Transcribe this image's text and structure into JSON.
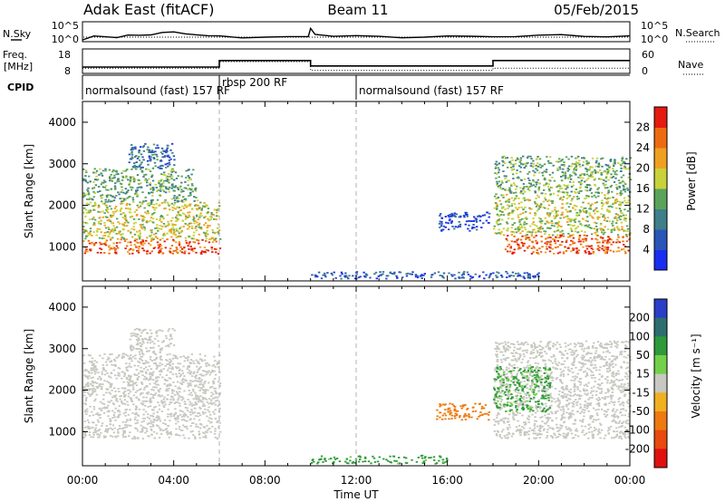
{
  "header": {
    "station": "Adak East (fitACF)",
    "beam": "Beam 11",
    "date": "05/Feb/2015"
  },
  "colors": {
    "line": "#000000",
    "vline": "#b0b0b0"
  },
  "chart_data": [
    {
      "type": "line",
      "panel": "noise",
      "left_label": "N.Sky",
      "right_label": "N.Search",
      "y_ticks_left": [
        "10^5",
        "10^0"
      ],
      "y_ticks_right": [
        "10^5",
        "10^0"
      ],
      "x_range_hours": [
        0,
        24
      ],
      "sky_level": [
        [
          0,
          0.12
        ],
        [
          0.5,
          0.2
        ],
        [
          1,
          0.25
        ],
        [
          1.5,
          0.22
        ],
        [
          2,
          0.28
        ],
        [
          2.5,
          0.3
        ],
        [
          3,
          0.35
        ],
        [
          3.5,
          0.42
        ],
        [
          4,
          0.45
        ],
        [
          4.5,
          0.38
        ],
        [
          5,
          0.3
        ],
        [
          5.5,
          0.26
        ],
        [
          6,
          0.22
        ],
        [
          7,
          0.2
        ],
        [
          8,
          0.22
        ],
        [
          9,
          0.2
        ],
        [
          9.9,
          0.2
        ],
        [
          10,
          0.75
        ],
        [
          10.2,
          0.32
        ],
        [
          11,
          0.25
        ],
        [
          12,
          0.22
        ],
        [
          13,
          0.2
        ],
        [
          14,
          0.22
        ],
        [
          15,
          0.2
        ],
        [
          16,
          0.2
        ],
        [
          17,
          0.22
        ],
        [
          18,
          0.2
        ],
        [
          19,
          0.22
        ],
        [
          20,
          0.25
        ],
        [
          21,
          0.28
        ],
        [
          22,
          0.26
        ],
        [
          23,
          0.24
        ],
        [
          24,
          0.22
        ]
      ]
    },
    {
      "type": "line",
      "panel": "frequency",
      "left_label": "Freq.",
      "left_unit": "[MHz]",
      "right_label": "Nave",
      "y_ticks_left": [
        "18",
        "8"
      ],
      "y_ticks_right": [
        "60",
        "0"
      ],
      "x_range_hours": [
        0,
        24
      ],
      "frequency_mhz": [
        [
          0,
          10.5
        ],
        [
          6,
          10.5
        ],
        [
          6,
          13.5
        ],
        [
          10,
          13.5
        ],
        [
          10,
          11
        ],
        [
          18,
          11
        ],
        [
          18,
          13.5
        ],
        [
          24,
          13.5
        ]
      ],
      "nave": [
        [
          0,
          12
        ],
        [
          6,
          12
        ],
        [
          6,
          30
        ],
        [
          10,
          30
        ],
        [
          10,
          6
        ],
        [
          18,
          6
        ],
        [
          18,
          12
        ],
        [
          24,
          12
        ]
      ]
    },
    {
      "type": "table",
      "panel": "cpid",
      "label": "CPID",
      "programs": [
        {
          "start": 0,
          "end": 6,
          "name": "normalsound (fast) 157 RF"
        },
        {
          "start": 6,
          "end": 12,
          "name": "rbsp 200 RF"
        },
        {
          "start": 12,
          "end": 24,
          "name": "normalsound (fast) 157 RF"
        }
      ]
    },
    {
      "type": "heatmap",
      "panel": "power",
      "ylabel": "Slant Range [km]",
      "ylim": [
        180,
        4500
      ],
      "y_ticks": [
        1000,
        2000,
        3000,
        4000
      ],
      "x_range_hours": [
        0,
        24
      ],
      "colorbar_label": "Power [dB]",
      "colorbar_ticks": [
        4,
        8,
        12,
        16,
        20,
        24,
        28
      ],
      "colorbar_range": [
        0,
        32
      ],
      "colorbar_colors": [
        "#1a2ef0",
        "#2a55b8",
        "#3e7f8a",
        "#5aa35a",
        "#c8d23a",
        "#f0a020",
        "#ee6a10",
        "#e51a10"
      ],
      "regions": [
        {
          "t": [
            0,
            6
          ],
          "r": [
            850,
            1200
          ],
          "level": 27
        },
        {
          "t": [
            0,
            6
          ],
          "r": [
            1200,
            2100
          ],
          "level": 18
        },
        {
          "t": [
            0,
            5
          ],
          "r": [
            2100,
            2900
          ],
          "level": 13
        },
        {
          "t": [
            2,
            4
          ],
          "r": [
            2900,
            3500
          ],
          "level": 8
        },
        {
          "t": [
            18.5,
            24
          ],
          "r": [
            850,
            1300
          ],
          "level": 27
        },
        {
          "t": [
            18,
            24
          ],
          "r": [
            1300,
            2300
          ],
          "level": 17
        },
        {
          "t": [
            18,
            24
          ],
          "r": [
            2300,
            3200
          ],
          "level": 14
        },
        {
          "t": [
            15.6,
            17.8
          ],
          "r": [
            1400,
            1850
          ],
          "level": 5
        },
        {
          "t": [
            10,
            20
          ],
          "r": [
            250,
            420
          ],
          "level": 6
        }
      ]
    },
    {
      "type": "heatmap",
      "panel": "velocity",
      "ylabel": "Slant Range [km]",
      "ylim": [
        180,
        4500
      ],
      "y_ticks": [
        1000,
        2000,
        3000,
        4000
      ],
      "x_range_hours": [
        0,
        24
      ],
      "xlabel": "Time UT",
      "x_ticks": [
        "00:00",
        "04:00",
        "08:00",
        "12:00",
        "16:00",
        "20:00",
        "00:00"
      ],
      "colorbar_label": "Velocity [m s⁻¹]",
      "colorbar_ticks": [
        200,
        100,
        50,
        15,
        -15,
        -50,
        -100,
        -200
      ],
      "colorbar_colors": [
        "#2a3ec8",
        "#2f6e6e",
        "#2f9a3a",
        "#73d04a",
        "#c8c8c0",
        "#f0b020",
        "#ee7a10",
        "#e84a10",
        "#e01010"
      ],
      "regions": [
        {
          "t": [
            0,
            6
          ],
          "r": [
            850,
            2900
          ],
          "value": 0
        },
        {
          "t": [
            2,
            4
          ],
          "r": [
            2900,
            3500
          ],
          "value": 0
        },
        {
          "t": [
            18,
            24
          ],
          "r": [
            850,
            3200
          ],
          "value": 0
        },
        {
          "t": [
            18,
            20.5
          ],
          "r": [
            1500,
            2600
          ],
          "value": 40
        },
        {
          "t": [
            15.5,
            17.8
          ],
          "r": [
            1300,
            1700
          ],
          "value": -60
        },
        {
          "t": [
            10,
            16
          ],
          "r": [
            250,
            450
          ],
          "value": 45
        }
      ]
    }
  ]
}
